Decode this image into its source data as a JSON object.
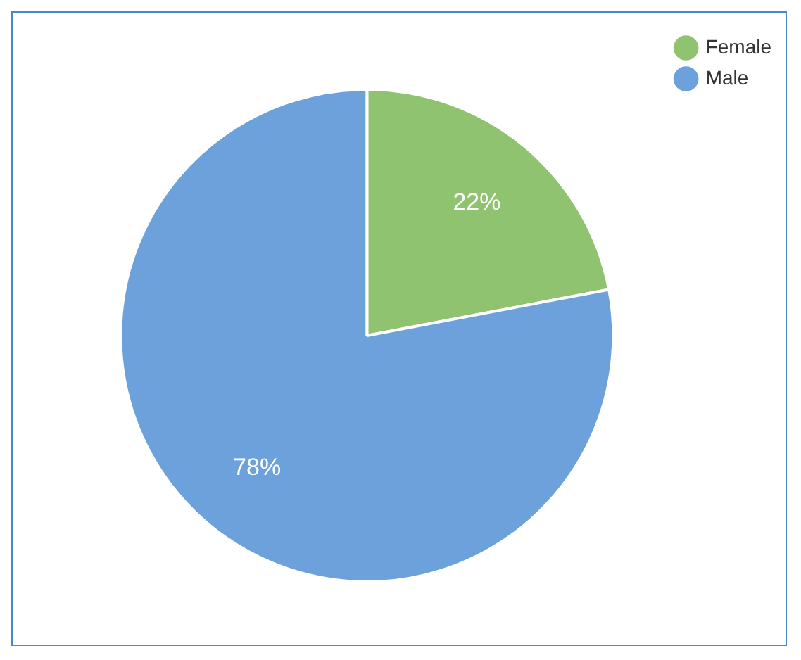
{
  "chart_data": {
    "type": "pie",
    "categories": [
      "Female",
      "Male"
    ],
    "values": [
      22,
      78
    ],
    "colors": [
      "#8fc36f",
      "#6ca1dc"
    ],
    "value_labels": [
      "22%",
      "78%"
    ],
    "legend": "top right"
  }
}
